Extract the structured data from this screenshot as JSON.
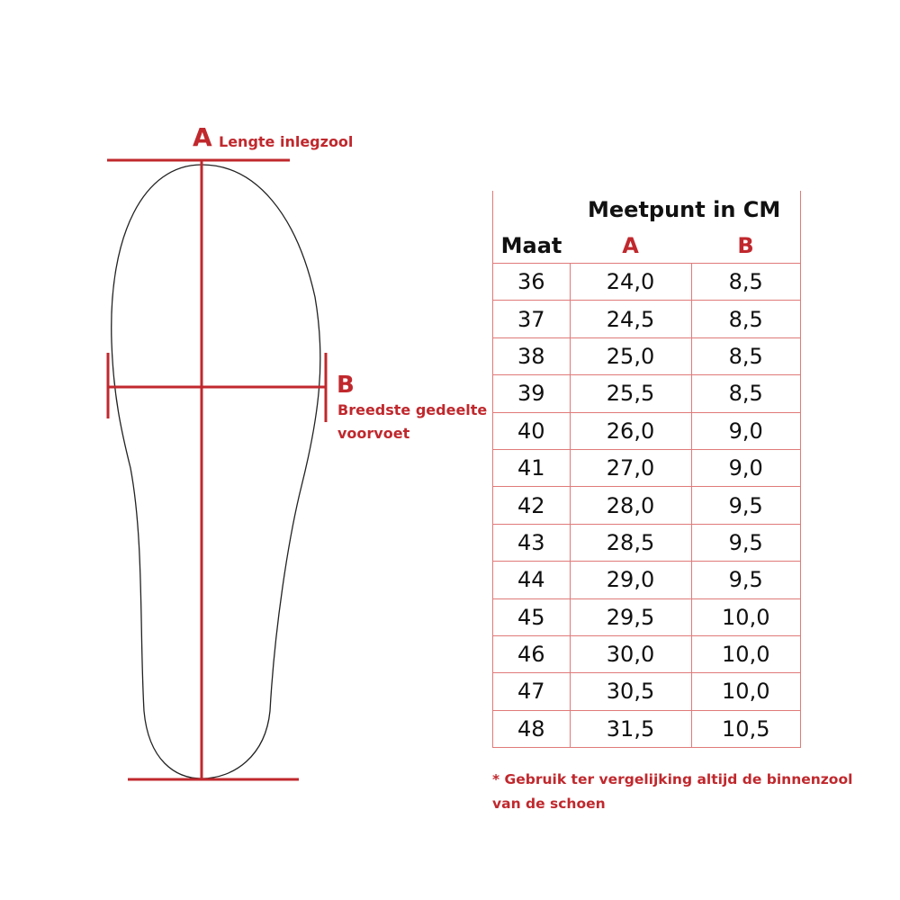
{
  "colors": {
    "accent": "#c0282d",
    "table_border": "#e07a7a",
    "outline": "#222222"
  },
  "diagram": {
    "a_letter": "A",
    "a_label": "Lengte inlegzool",
    "b_letter": "B",
    "b_label_line1": "Breedste gedeelte",
    "b_label_line2": "voorvoet"
  },
  "table": {
    "title": "Meetpunt in CM",
    "headers": [
      "Maat",
      "A",
      "B"
    ],
    "rows": [
      [
        "36",
        "24,0",
        "8,5"
      ],
      [
        "37",
        "24,5",
        "8,5"
      ],
      [
        "38",
        "25,0",
        "8,5"
      ],
      [
        "39",
        "25,5",
        "8,5"
      ],
      [
        "40",
        "26,0",
        "9,0"
      ],
      [
        "41",
        "27,0",
        "9,0"
      ],
      [
        "42",
        "28,0",
        "9,5"
      ],
      [
        "43",
        "28,5",
        "9,5"
      ],
      [
        "44",
        "29,0",
        "9,5"
      ],
      [
        "45",
        "29,5",
        "10,0"
      ],
      [
        "46",
        "30,0",
        "10,0"
      ],
      [
        "47",
        "30,5",
        "10,0"
      ],
      [
        "48",
        "31,5",
        "10,5"
      ]
    ]
  },
  "note": {
    "line1": "* Gebruik ter vergelijking altijd de binnenzool",
    "line2": "van de schoen"
  }
}
